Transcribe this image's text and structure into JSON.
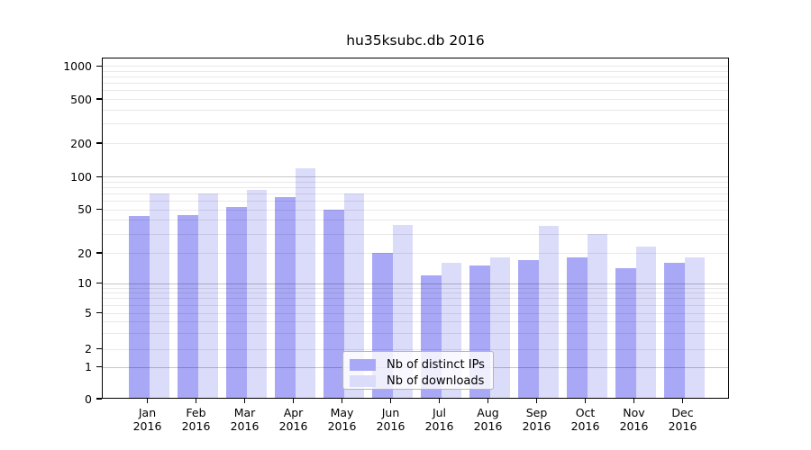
{
  "chart_data": {
    "type": "bar",
    "title": "hu35ksubc.db 2016",
    "categories": [
      "Jan",
      "Feb",
      "Mar",
      "Apr",
      "May",
      "Jun",
      "Jul",
      "Aug",
      "Sep",
      "Oct",
      "Nov",
      "Dec"
    ],
    "category_year": "2016",
    "series": [
      {
        "name": "Nb of distinct IPs",
        "color": "#a8a8f6",
        "values": [
          43,
          44,
          52,
          65,
          50,
          20,
          12,
          15,
          17,
          18,
          14,
          16
        ]
      },
      {
        "name": "Nb of downloads",
        "color": "#dbdbfa",
        "values": [
          70,
          70,
          75,
          118,
          70,
          36,
          16,
          18,
          35,
          30,
          23,
          18
        ]
      }
    ],
    "yscale": "symlog",
    "ytick_values": [
      0,
      1,
      2,
      5,
      10,
      20,
      50,
      100,
      200,
      500,
      1000
    ],
    "ytick_labels": [
      "0",
      "1",
      "2",
      "5",
      "10",
      "20",
      "50",
      "100",
      "200",
      "500",
      "1000"
    ],
    "ylim": [
      0,
      1200
    ],
    "grid": true,
    "legend_position": "lower center"
  }
}
